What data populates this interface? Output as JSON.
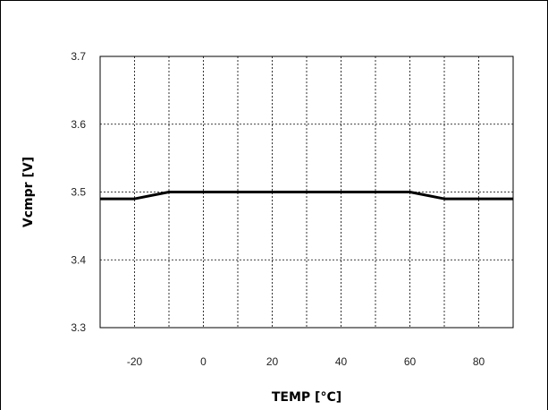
{
  "chart_data": {
    "type": "line",
    "title": "",
    "xlabel": "TEMP [°C]",
    "ylabel": "Vcmpr [V]",
    "xlim": [
      -30,
      90
    ],
    "ylim": [
      3.3,
      3.7
    ],
    "x_ticks": [
      -20,
      0,
      20,
      40,
      60,
      80
    ],
    "x_tick_labels": [
      "-20",
      "0",
      "20",
      "40",
      "60",
      "80"
    ],
    "y_ticks": [
      3.3,
      3.4,
      3.5,
      3.6,
      3.7
    ],
    "y_tick_labels": [
      "3.3",
      "3.4",
      "3.5",
      "3.6",
      "3.7"
    ],
    "x_minor_step": 10,
    "y_minor_step": 0.1,
    "grid": true,
    "grid_style": "dashed",
    "line_color": "#000000",
    "series": [
      {
        "x": [
          -30,
          -20,
          -10,
          0,
          10,
          20,
          30,
          40,
          50,
          60,
          70,
          80,
          90
        ],
        "values": [
          3.49,
          3.49,
          3.5,
          3.5,
          3.5,
          3.5,
          3.5,
          3.5,
          3.5,
          3.5,
          3.49,
          3.49,
          3.49
        ]
      }
    ]
  }
}
